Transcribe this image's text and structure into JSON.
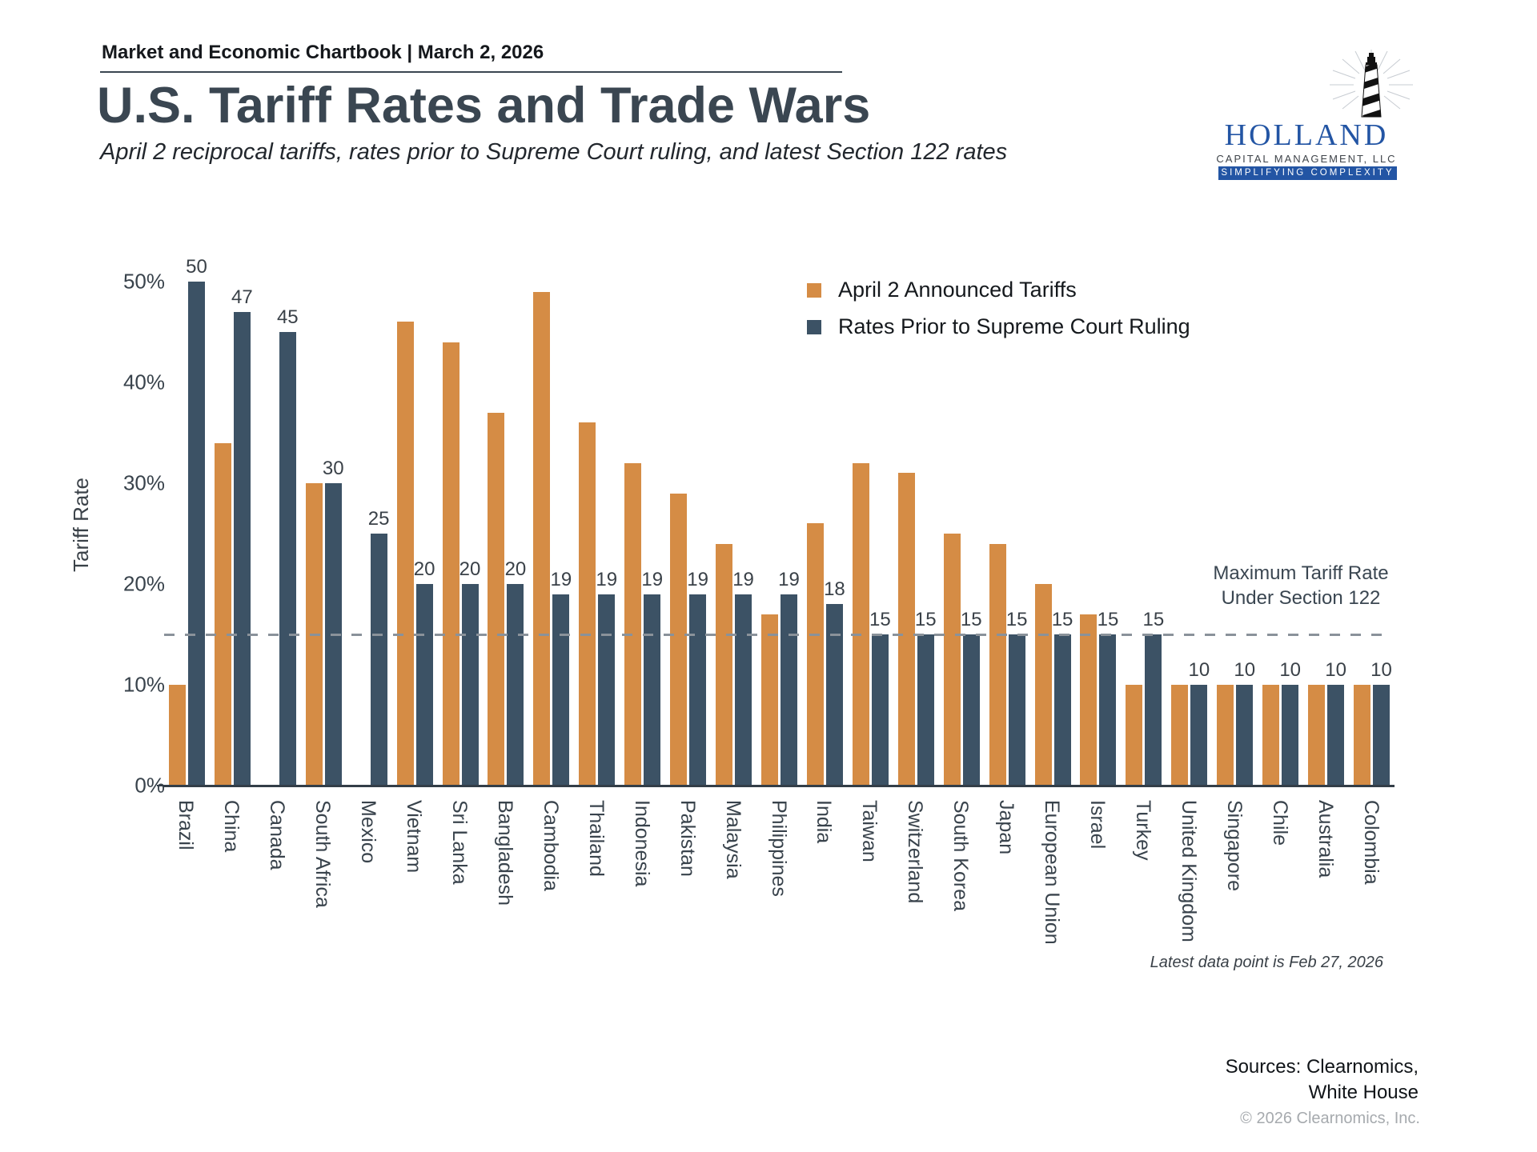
{
  "header": {
    "text": "Market and Economic Chartbook | March 2, 2026"
  },
  "title": "U.S. Tariff Rates and Trade Wars",
  "subtitle": "April 2 reciprocal tariffs, rates prior to Supreme Court ruling, and latest Section 122 rates",
  "logo": {
    "wordmark": "HOLLAND",
    "subtitle": "CAPITAL MANAGEMENT, LLC",
    "tagline": "SIMPLIFYING COMPLEXITY",
    "blue": "#2355a4"
  },
  "legend": [
    {
      "label": "April 2 Announced Tariffs",
      "color": "#d58c45"
    },
    {
      "label": "Rates Prior to Supreme Court Ruling",
      "color": "#3c5265"
    }
  ],
  "annotation": {
    "line1": "Maximum Tariff Rate",
    "line2": "Under Section 122"
  },
  "footnote": "Latest data point is Feb 27, 2026",
  "sources": {
    "line1": "Sources: Clearnomics,",
    "line2": "White House",
    "copyright": "© 2026 Clearnomics, Inc."
  },
  "colors": {
    "april2_bar": "#d58c45",
    "prior_bar": "#3c5265",
    "dashed_reference": "#8a929a",
    "axis": "#333e48",
    "title_text": "#3a4651"
  },
  "chart_data": {
    "type": "bar",
    "title": "U.S. Tariff Rates and Trade Wars",
    "xlabel": "",
    "ylabel": "Tariff Rate",
    "ylim": [
      0,
      52
    ],
    "y_ticks": [
      "0%",
      "10%",
      "20%",
      "30%",
      "40%",
      "50%"
    ],
    "y_tick_values": [
      0,
      10,
      20,
      30,
      40,
      50
    ],
    "grid": false,
    "legend_position": "top-right",
    "reference_line": {
      "value": 15,
      "style": "dashed",
      "label": "Maximum Tariff Rate Under Section 122"
    },
    "categories": [
      "Brazil",
      "China",
      "Canada",
      "South Africa",
      "Mexico",
      "Vietnam",
      "Sri Lanka",
      "Bangladesh",
      "Cambodia",
      "Thailand",
      "Indonesia",
      "Pakistan",
      "Malaysia",
      "Philippines",
      "India",
      "Taiwan",
      "Switzerland",
      "South Korea",
      "Japan",
      "European Union",
      "Israel",
      "Turkey",
      "United Kingdom",
      "Singapore",
      "Chile",
      "Australia",
      "Colombia"
    ],
    "series": [
      {
        "name": "April 2 Announced Tariffs",
        "color": "#d58c45",
        "data_labels": false,
        "values": [
          10,
          34,
          null,
          30,
          null,
          46,
          44,
          37,
          49,
          36,
          32,
          29,
          24,
          17,
          26,
          32,
          31,
          25,
          24,
          20,
          17,
          10,
          10,
          10,
          10,
          10,
          10
        ]
      },
      {
        "name": "Rates Prior to Supreme Court Ruling",
        "color": "#3c5265",
        "data_labels": true,
        "values": [
          50,
          47,
          45,
          30,
          25,
          20,
          20,
          20,
          19,
          19,
          19,
          19,
          19,
          19,
          18,
          15,
          15,
          15,
          15,
          15,
          15,
          15,
          10,
          10,
          10,
          10,
          10
        ]
      }
    ]
  }
}
